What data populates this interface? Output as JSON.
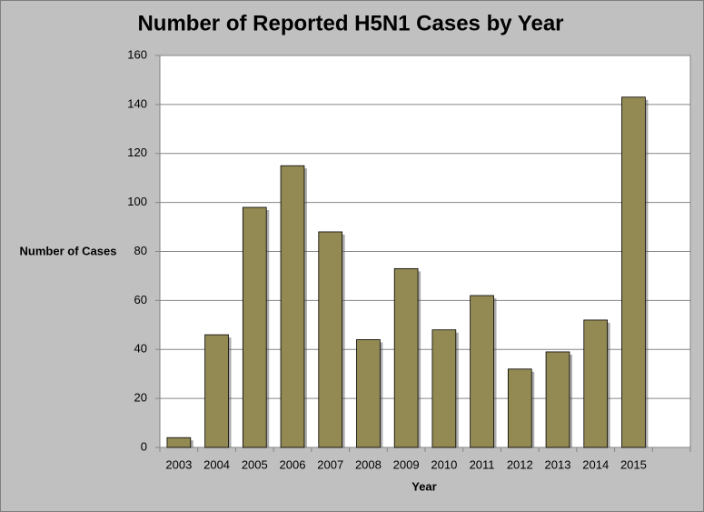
{
  "chart_data": {
    "type": "bar",
    "title": "Number of Reported H5N1 Cases by Year",
    "x_label": "Year",
    "y_label": "Number of Cases",
    "categories": [
      "2003",
      "2004",
      "2005",
      "2006",
      "2007",
      "2008",
      "2009",
      "2010",
      "2011",
      "2012",
      "2013",
      "2014",
      "2015",
      null
    ],
    "values": [
      4,
      46,
      98,
      115,
      88,
      44,
      73,
      48,
      62,
      32,
      39,
      52,
      143,
      null
    ],
    "color": "#938953",
    "ylim": [
      0,
      160
    ],
    "yticks": [
      0,
      20,
      40,
      60,
      80,
      100,
      120,
      140,
      160
    ],
    "grid": true
  }
}
